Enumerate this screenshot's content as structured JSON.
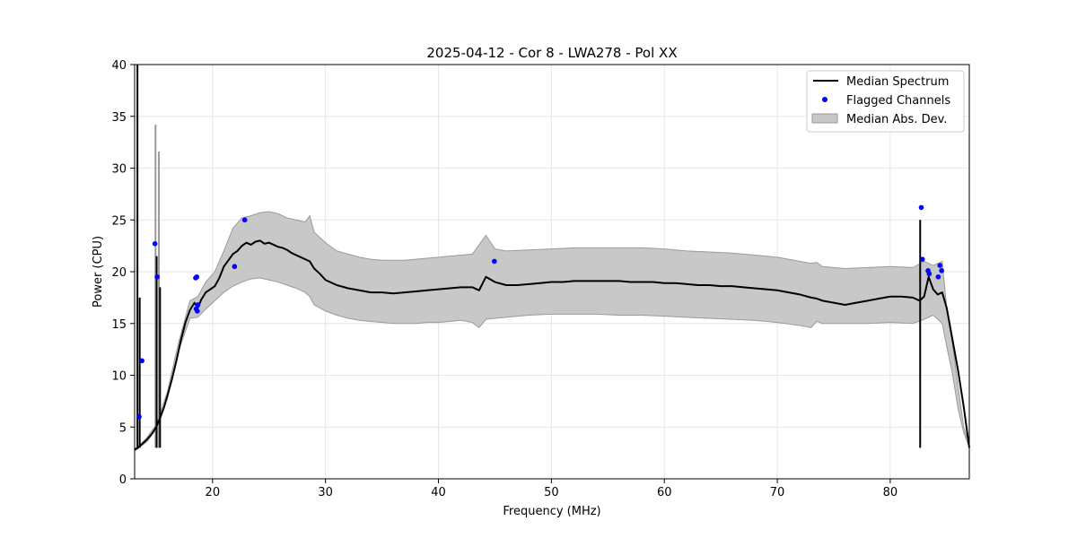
{
  "chart_data": {
    "type": "line",
    "title": "2025-04-12 - Cor 8 - LWA278 - Pol XX",
    "xlabel": "Frequency (MHz)",
    "ylabel": "Power (CPU)",
    "xlim": [
      13.1,
      87.0
    ],
    "ylim": [
      0,
      40
    ],
    "xticks": [
      20,
      30,
      40,
      50,
      60,
      70,
      80
    ],
    "yticks": [
      0,
      5,
      10,
      15,
      20,
      25,
      30,
      35,
      40
    ],
    "grid": true,
    "legend_position": "top-right",
    "legend": [
      "Median Spectrum",
      "Flagged Channels",
      "Median Abs. Dev."
    ],
    "colors": {
      "median": "#000000",
      "flagged": "#0000ff",
      "band_fill": "#c8c8c8",
      "band_edge": "#9a9a9a",
      "grid": "#e6e6e6"
    },
    "series": [
      {
        "name": "Median Spectrum",
        "x": [
          13.1,
          13.4,
          13.6,
          13.8,
          14.2,
          14.6,
          14.9,
          15.0,
          15.1,
          15.2,
          15.3,
          15.4,
          15.7,
          16.0,
          16.4,
          16.8,
          17.2,
          17.6,
          18.0,
          18.4,
          18.7,
          19.0,
          19.4,
          19.8,
          20.2,
          20.6,
          21.0,
          21.4,
          21.8,
          22.2,
          22.6,
          23.0,
          23.4,
          23.8,
          24.2,
          24.6,
          25.0,
          25.4,
          25.8,
          26.2,
          26.6,
          27.0,
          27.4,
          27.8,
          28.2,
          28.6,
          29.0,
          29.5,
          30.0,
          31.0,
          32.0,
          33.0,
          34.0,
          35.0,
          36.0,
          37.0,
          38.0,
          39.0,
          40.0,
          41.0,
          42.0,
          43.0,
          43.6,
          44.2,
          45.0,
          46.0,
          47.0,
          48.0,
          49.0,
          50.0,
          51.0,
          52.0,
          53.0,
          54.0,
          55.0,
          56.0,
          57.0,
          58.0,
          59.0,
          60.0,
          61.0,
          62.0,
          63.0,
          64.0,
          65.0,
          66.0,
          67.0,
          68.0,
          69.0,
          70.0,
          71.0,
          72.0,
          73.0,
          73.5,
          74.0,
          75.0,
          76.0,
          77.0,
          78.0,
          79.0,
          80.0,
          81.0,
          82.0,
          82.6,
          83.0,
          83.4,
          83.8,
          84.2,
          84.6,
          85.0,
          85.5,
          86.0,
          86.5,
          87.0
        ],
        "y": [
          2.8,
          3.0,
          3.2,
          3.4,
          3.8,
          4.3,
          4.8,
          5.0,
          5.2,
          5.5,
          5.7,
          6.0,
          6.9,
          8.0,
          9.6,
          11.4,
          13.4,
          15.1,
          16.3,
          17.0,
          16.5,
          17.3,
          18.0,
          18.3,
          18.6,
          19.4,
          20.5,
          21.1,
          21.7,
          22.0,
          22.5,
          22.8,
          22.6,
          22.9,
          23.0,
          22.7,
          22.8,
          22.6,
          22.4,
          22.3,
          22.1,
          21.8,
          21.6,
          21.4,
          21.2,
          21.0,
          20.3,
          19.8,
          19.2,
          18.7,
          18.4,
          18.2,
          18.0,
          18.0,
          17.9,
          18.0,
          18.1,
          18.2,
          18.3,
          18.4,
          18.5,
          18.5,
          18.2,
          19.5,
          19.0,
          18.7,
          18.7,
          18.8,
          18.9,
          19.0,
          19.0,
          19.1,
          19.1,
          19.1,
          19.1,
          19.1,
          19.0,
          19.0,
          19.0,
          18.9,
          18.9,
          18.8,
          18.7,
          18.7,
          18.6,
          18.6,
          18.5,
          18.4,
          18.3,
          18.2,
          18.0,
          17.8,
          17.5,
          17.4,
          17.2,
          17.0,
          16.8,
          17.0,
          17.2,
          17.4,
          17.6,
          17.6,
          17.5,
          17.2,
          17.6,
          19.5,
          18.3,
          17.8,
          18.0,
          16.5,
          13.5,
          10.5,
          7.0,
          3.0
        ]
      },
      {
        "name": "Median Abs. Dev.",
        "x": [
          13.1,
          13.6,
          14.2,
          15.0,
          16.0,
          17.0,
          18.0,
          18.7,
          19.4,
          20.2,
          21.0,
          21.8,
          22.6,
          23.4,
          24.2,
          25.0,
          25.8,
          26.6,
          27.4,
          28.2,
          28.6,
          29.0,
          30.0,
          31.0,
          32.0,
          33.0,
          34.0,
          35.0,
          36.0,
          37.0,
          38.0,
          39.0,
          40.0,
          41.0,
          42.0,
          43.0,
          43.6,
          44.2,
          45.0,
          46.0,
          48.0,
          50.0,
          52.0,
          54.0,
          56.0,
          58.0,
          60.0,
          62.0,
          64.0,
          66.0,
          68.0,
          70.0,
          72.0,
          73.0,
          73.5,
          74.0,
          76.0,
          78.0,
          80.0,
          82.0,
          83.0,
          83.8,
          84.6,
          85.0,
          85.5,
          86.0,
          86.5,
          87.0
        ],
        "lower": [
          2.7,
          3.1,
          3.6,
          4.8,
          7.8,
          12.4,
          15.5,
          15.6,
          16.4,
          17.2,
          18.0,
          18.6,
          19.0,
          19.3,
          19.4,
          19.2,
          19.0,
          18.7,
          18.4,
          18.0,
          17.6,
          16.8,
          16.2,
          15.8,
          15.5,
          15.3,
          15.2,
          15.1,
          15.0,
          15.0,
          15.0,
          15.1,
          15.1,
          15.2,
          15.3,
          15.1,
          14.6,
          15.4,
          15.5,
          15.6,
          15.8,
          15.9,
          15.9,
          15.9,
          15.8,
          15.8,
          15.7,
          15.6,
          15.5,
          15.4,
          15.3,
          15.1,
          14.8,
          14.6,
          15.2,
          15.0,
          15.0,
          15.0,
          15.1,
          15.0,
          15.4,
          15.8,
          15.0,
          12.8,
          10.2,
          6.8,
          4.5,
          3.0
        ],
        "upper": [
          2.9,
          3.3,
          4.0,
          5.2,
          8.4,
          13.2,
          17.2,
          17.6,
          19.0,
          20.0,
          22.0,
          24.2,
          25.2,
          25.4,
          25.7,
          25.8,
          25.6,
          25.2,
          25.0,
          24.8,
          25.4,
          23.8,
          22.8,
          22.0,
          21.7,
          21.4,
          21.2,
          21.1,
          21.1,
          21.1,
          21.2,
          21.3,
          21.4,
          21.5,
          21.6,
          21.7,
          22.6,
          23.5,
          22.2,
          22.0,
          22.1,
          22.2,
          22.3,
          22.3,
          22.3,
          22.3,
          22.2,
          22.0,
          21.9,
          21.8,
          21.6,
          21.4,
          21.0,
          20.8,
          20.9,
          20.5,
          20.3,
          20.4,
          20.5,
          20.4,
          21.0,
          20.6,
          21.0,
          16.5,
          13.2,
          9.0,
          5.0,
          3.3
        ]
      },
      {
        "name": "Flagged Channels",
        "x": [
          13.5,
          13.75,
          14.9,
          15.1,
          18.5,
          18.6,
          18.7,
          18.55,
          18.65,
          21.95,
          22.85,
          44.95,
          82.75,
          82.85,
          83.35,
          83.45,
          84.25,
          84.4,
          84.55
        ],
        "y": [
          6.0,
          11.4,
          22.7,
          19.5,
          19.4,
          19.5,
          16.8,
          16.4,
          16.2,
          20.5,
          25.0,
          21.0,
          26.2,
          21.2,
          20.1,
          19.8,
          19.5,
          20.6,
          20.1
        ]
      }
    ],
    "spikes": [
      {
        "x": 13.35,
        "y": 40.0
      },
      {
        "x": 13.55,
        "y": 17.5
      },
      {
        "x": 14.95,
        "y": 34.2
      },
      {
        "x": 15.05,
        "y": 21.5
      },
      {
        "x": 15.25,
        "y": 31.6
      },
      {
        "x": 15.35,
        "y": 18.5
      },
      {
        "x": 82.65,
        "y": 25.0
      }
    ]
  }
}
